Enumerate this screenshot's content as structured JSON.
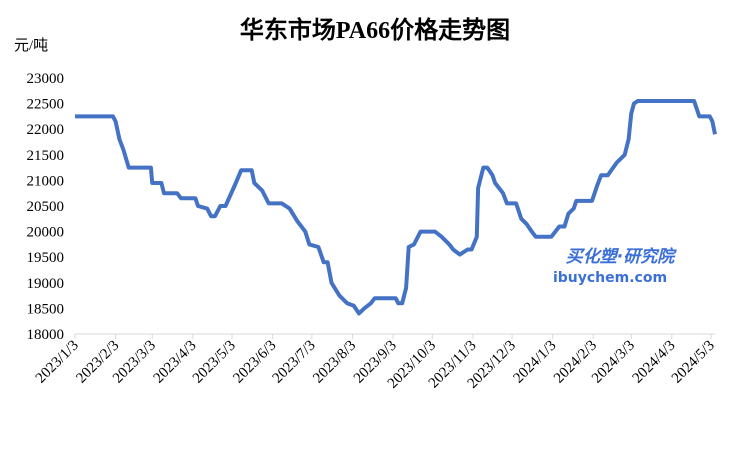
{
  "chart_data": {
    "type": "line",
    "title": "华东市场PA66价格走势图",
    "y_unit": "元/吨",
    "watermark": [
      "买化塑·研究院",
      "ibuychem.com"
    ],
    "x": [
      "2023/1/3",
      "2023/2/1",
      "2023/2/3",
      "2023/2/6",
      "2023/2/9",
      "2023/2/13",
      "2023/3/2",
      "2023/3/3",
      "2023/3/10",
      "2023/3/12",
      "2023/3/22",
      "2023/3/25",
      "2023/4/5",
      "2023/4/7",
      "2023/4/14",
      "2023/4/17",
      "2023/4/20",
      "2023/4/24",
      "2023/4/28",
      "2023/5/5",
      "2023/5/10",
      "2023/5/18",
      "2023/5/20",
      "2023/5/26",
      "2023/5/31",
      "2023/6/10",
      "2023/6/16",
      "2023/6/22",
      "2023/6/28",
      "2023/7/1",
      "2023/7/8",
      "2023/7/12",
      "2023/7/15",
      "2023/7/18",
      "2023/7/24",
      "2023/7/30",
      "2023/8/4",
      "2023/8/8",
      "2023/8/12",
      "2023/8/17",
      "2023/8/20",
      "2023/9/5",
      "2023/9/7",
      "2023/9/10",
      "2023/9/13",
      "2023/9/15",
      "2023/9/19",
      "2023/9/24",
      "2023/10/5",
      "2023/10/10",
      "2023/10/16",
      "2023/10/19",
      "2023/10/24",
      "2023/10/30",
      "2023/11/2",
      "2023/11/6",
      "2023/11/7",
      "2023/11/11",
      "2023/11/14",
      "2023/11/18",
      "2023/11/20",
      "2023/11/26",
      "2023/11/29",
      "2023/12/6",
      "2023/12/10",
      "2023/12/14",
      "2023/12/18",
      "2023/12/21",
      "2024/1/2",
      "2024/1/8",
      "2024/1/12",
      "2024/1/15",
      "2024/1/19",
      "2024/1/21",
      "2024/2/2",
      "2024/2/6",
      "2024/2/9",
      "2024/2/14",
      "2024/2/21",
      "2024/2/27",
      "2024/3/1",
      "2024/3/3",
      "2024/3/5",
      "2024/3/8",
      "2024/4/20",
      "2024/4/24",
      "2024/5/2",
      "2024/5/4",
      "2024/5/6"
    ],
    "series": [
      {
        "name": "华东市场PA66",
        "color": "#4472c4",
        "values": [
          22250,
          22250,
          22150,
          21800,
          21600,
          21250,
          21250,
          20950,
          20950,
          20750,
          20750,
          20650,
          20650,
          20500,
          20450,
          20300,
          20300,
          20500,
          20500,
          20900,
          21200,
          21200,
          20950,
          20800,
          20550,
          20550,
          20450,
          20200,
          20000,
          19750,
          19700,
          19400,
          19400,
          19000,
          18750,
          18600,
          18550,
          18400,
          18500,
          18600,
          18700,
          18700,
          18600,
          18600,
          18900,
          19700,
          19750,
          20000,
          20000,
          19900,
          19750,
          19650,
          19550,
          19650,
          19650,
          19900,
          20850,
          21250,
          21250,
          21100,
          20950,
          20750,
          20550,
          20550,
          20250,
          20150,
          20000,
          19900,
          19900,
          20100,
          20100,
          20350,
          20450,
          20600,
          20600,
          20900,
          21100,
          21100,
          21350,
          21500,
          21800,
          22300,
          22500,
          22550,
          22550,
          22250,
          22250,
          22150,
          21900
        ]
      }
    ],
    "xlim": [
      "2023/1/3",
      "2024/5/6"
    ],
    "xticks": [
      "2023/1/3",
      "2023/2/3",
      "2023/3/3",
      "2023/4/3",
      "2023/5/3",
      "2023/6/3",
      "2023/7/3",
      "2023/8/3",
      "2023/9/3",
      "2023/10/3",
      "2023/11/3",
      "2023/12/3",
      "2024/1/3",
      "2024/2/3",
      "2024/3/3",
      "2024/4/3",
      "2024/5/3"
    ],
    "ylim": [
      18000,
      23000
    ],
    "yticks": [
      18000,
      18500,
      19000,
      19500,
      20000,
      20500,
      21000,
      21500,
      22000,
      22500,
      23000
    ]
  }
}
